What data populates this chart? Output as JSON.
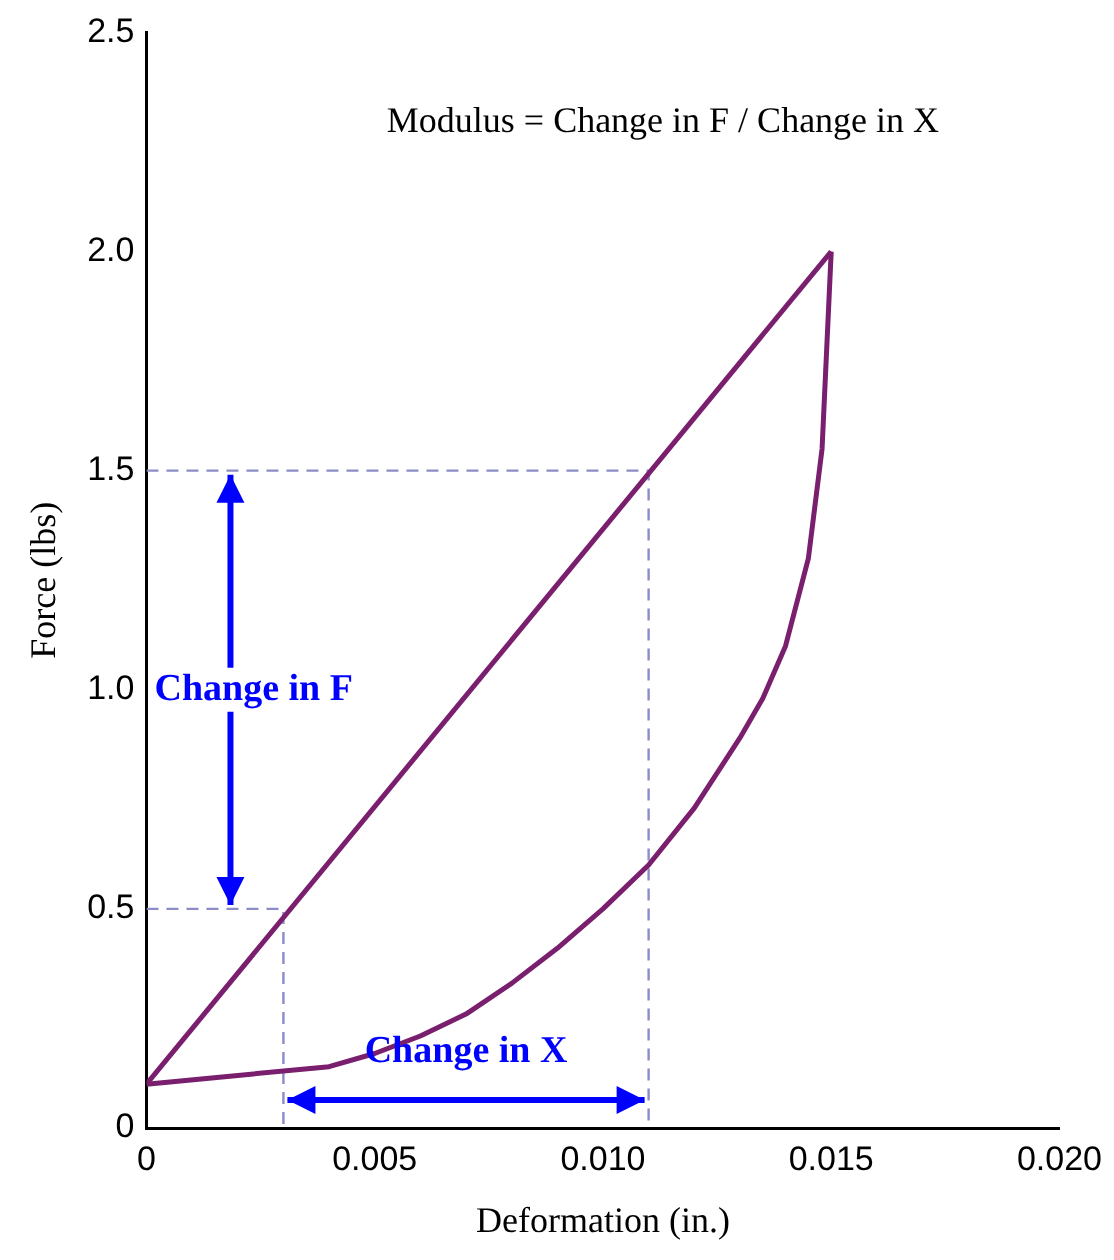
{
  "chart_data": {
    "type": "line",
    "xlabel": "Deformation (in.)",
    "ylabel": "Force (lbs)",
    "xlim": [
      0,
      0.02
    ],
    "xticks": [
      {
        "value": 0,
        "label": "0"
      },
      {
        "value": 0.005,
        "label": "0.005"
      },
      {
        "value": 0.01,
        "label": "0.010"
      },
      {
        "value": 0.015,
        "label": "0.015"
      },
      {
        "value": 0.02,
        "label": "0.020"
      }
    ],
    "ylim": [
      0,
      2.5
    ],
    "yticks": [
      {
        "value": 0,
        "label": "0"
      },
      {
        "value": 0.5,
        "label": "0.5"
      },
      {
        "value": 1,
        "label": "1.0"
      },
      {
        "value": 1.5,
        "label": "1.5"
      },
      {
        "value": 2,
        "label": "2.0"
      },
      {
        "value": 2.5,
        "label": "2.5"
      }
    ],
    "grid": false,
    "legend": false,
    "marker": "none",
    "series": [
      {
        "color": "#7a1e6e",
        "x": [
          0,
          0.015
        ],
        "values": [
          0.1,
          2.0
        ]
      },
      {
        "color": "#7a1e6e",
        "x": [
          0,
          0.002,
          0.004,
          0.005,
          0.006,
          0.007,
          0.008,
          0.009,
          0.01,
          0.011,
          0.012,
          0.013,
          0.0135,
          0.014,
          0.0145,
          0.0148,
          0.015
        ],
        "values": [
          0.1,
          0.12,
          0.14,
          0.17,
          0.21,
          0.26,
          0.33,
          0.41,
          0.5,
          0.6,
          0.73,
          0.89,
          0.98,
          1.1,
          1.3,
          1.55,
          2.0
        ]
      },
      {
        "color": "#8c8cc8",
        "line_style": "dashed",
        "x": [
          0,
          0.003,
          0.003
        ],
        "values": [
          0.5,
          0.5,
          0
        ]
      },
      {
        "color": "#8c8cc8",
        "line_style": "dashed",
        "x": [
          0,
          0.011,
          0.011
        ],
        "values": [
          1.5,
          1.5,
          0
        ]
      }
    ],
    "annotations": [
      "Modulus = Change in F / Change in X",
      "Change in F",
      "Change in X"
    ]
  }
}
